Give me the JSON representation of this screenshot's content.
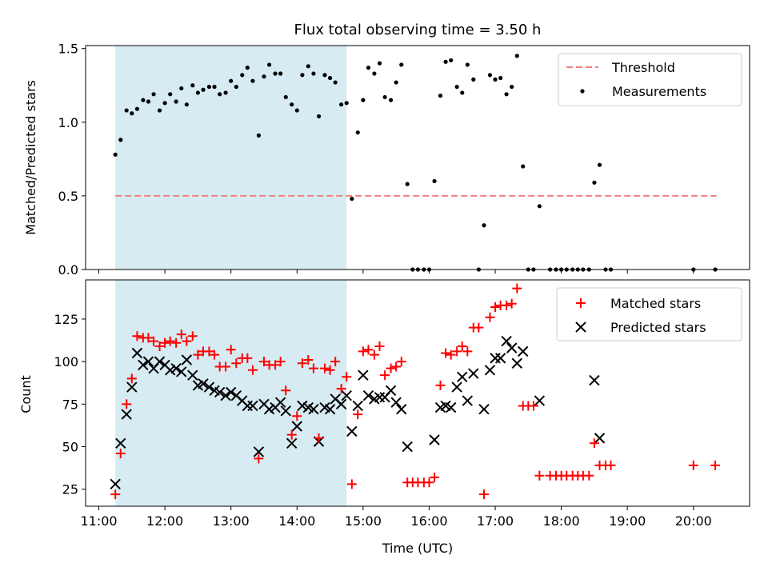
{
  "colors": {
    "threshold": "#f08080",
    "matched": "#ff0000",
    "predicted": "#000000",
    "shade": "#add8e6",
    "measure": "#000000"
  },
  "chart_data": [
    {
      "type": "scatter",
      "title": "Flux total observing time = 3.50 h",
      "ylabel": "Matched/Predicted stars",
      "xlabel": "",
      "xlim": [
        10.8,
        20.85
      ],
      "ylim": [
        0,
        1.52
      ],
      "yticks": [
        0,
        0.5,
        1.0,
        1.5
      ],
      "ytick_labels": [
        "0.0",
        "0.5",
        "1.0",
        "1.5"
      ],
      "shaded_span": [
        11.25,
        14.75
      ],
      "legend": {
        "position": "top-right",
        "entries": [
          "Threshold",
          "Measurements"
        ]
      },
      "threshold": {
        "name": "Threshold",
        "value": 0.5,
        "x_range": [
          11.25,
          20.35
        ]
      },
      "series": [
        {
          "name": "Measurements",
          "points": [
            [
              11.25,
              0.78
            ],
            [
              11.33,
              0.88
            ],
            [
              11.42,
              1.08
            ],
            [
              11.5,
              1.06
            ],
            [
              11.58,
              1.09
            ],
            [
              11.67,
              1.15
            ],
            [
              11.75,
              1.14
            ],
            [
              11.83,
              1.19
            ],
            [
              11.92,
              1.08
            ],
            [
              12.0,
              1.13
            ],
            [
              12.08,
              1.19
            ],
            [
              12.17,
              1.14
            ],
            [
              12.25,
              1.23
            ],
            [
              12.33,
              1.12
            ],
            [
              12.42,
              1.25
            ],
            [
              12.5,
              1.2
            ],
            [
              12.58,
              1.22
            ],
            [
              12.67,
              1.24
            ],
            [
              12.75,
              1.24
            ],
            [
              12.83,
              1.19
            ],
            [
              12.92,
              1.2
            ],
            [
              13.0,
              1.28
            ],
            [
              13.08,
              1.24
            ],
            [
              13.17,
              1.32
            ],
            [
              13.25,
              1.37
            ],
            [
              13.33,
              1.28
            ],
            [
              13.42,
              0.91
            ],
            [
              13.5,
              1.31
            ],
            [
              13.58,
              1.39
            ],
            [
              13.67,
              1.33
            ],
            [
              13.75,
              1.33
            ],
            [
              13.83,
              1.17
            ],
            [
              13.92,
              1.12
            ],
            [
              14.0,
              1.08
            ],
            [
              14.08,
              1.32
            ],
            [
              14.17,
              1.38
            ],
            [
              14.25,
              1.33
            ],
            [
              14.33,
              1.04
            ],
            [
              14.42,
              1.32
            ],
            [
              14.5,
              1.3
            ],
            [
              14.58,
              1.27
            ],
            [
              14.67,
              1.12
            ],
            [
              14.75,
              1.13
            ],
            [
              14.83,
              0.48
            ],
            [
              14.92,
              0.93
            ],
            [
              15.0,
              1.15
            ],
            [
              15.08,
              1.37
            ],
            [
              15.17,
              1.33
            ],
            [
              15.25,
              1.4
            ],
            [
              15.33,
              1.17
            ],
            [
              15.42,
              1.15
            ],
            [
              15.5,
              1.27
            ],
            [
              15.58,
              1.39
            ],
            [
              15.67,
              0.58
            ],
            [
              15.75,
              0
            ],
            [
              15.83,
              0
            ],
            [
              15.92,
              0
            ],
            [
              16.0,
              0
            ],
            [
              16.08,
              0.6
            ],
            [
              16.17,
              1.18
            ],
            [
              16.25,
              1.41
            ],
            [
              16.33,
              1.42
            ],
            [
              16.42,
              1.24
            ],
            [
              16.5,
              1.2
            ],
            [
              16.58,
              1.39
            ],
            [
              16.67,
              1.29
            ],
            [
              16.75,
              0
            ],
            [
              16.83,
              0.3
            ],
            [
              16.92,
              1.32
            ],
            [
              17.0,
              1.29
            ],
            [
              17.08,
              1.3
            ],
            [
              17.17,
              1.19
            ],
            [
              17.25,
              1.24
            ],
            [
              17.33,
              1.45
            ],
            [
              17.42,
              0.7
            ],
            [
              17.5,
              0
            ],
            [
              17.58,
              0
            ],
            [
              17.67,
              0.43
            ],
            [
              17.83,
              0
            ],
            [
              17.92,
              0
            ],
            [
              18.0,
              0
            ],
            [
              18.08,
              0
            ],
            [
              18.17,
              0
            ],
            [
              18.25,
              0
            ],
            [
              18.33,
              0
            ],
            [
              18.42,
              0
            ],
            [
              18.5,
              0.59
            ],
            [
              18.58,
              0.71
            ],
            [
              18.67,
              0
            ],
            [
              18.75,
              0
            ],
            [
              20.0,
              0
            ],
            [
              20.33,
              0
            ]
          ]
        }
      ]
    },
    {
      "type": "scatter",
      "title": "",
      "ylabel": "Count",
      "xlabel": "Time (UTC)",
      "xlim": [
        10.8,
        20.85
      ],
      "ylim": [
        15,
        148
      ],
      "yticks": [
        25,
        50,
        75,
        100,
        125
      ],
      "ytick_labels": [
        "25",
        "50",
        "75",
        "100",
        "125"
      ],
      "xticks": [
        11,
        12,
        13,
        14,
        15,
        16,
        17,
        18,
        19,
        20
      ],
      "xtick_labels": [
        "11:00",
        "12:00",
        "13:00",
        "14:00",
        "15:00",
        "16:00",
        "17:00",
        "18:00",
        "19:00",
        "20:00"
      ],
      "shaded_span": [
        11.25,
        14.75
      ],
      "legend": {
        "position": "top-right",
        "entries": [
          "Matched stars",
          "Predicted stars"
        ]
      },
      "series": [
        {
          "name": "Matched stars",
          "marker": "+",
          "points": [
            [
              11.25,
              22
            ],
            [
              11.33,
              46
            ],
            [
              11.42,
              75
            ],
            [
              11.5,
              90
            ],
            [
              11.58,
              115
            ],
            [
              11.67,
              114
            ],
            [
              11.75,
              114
            ],
            [
              11.83,
              112
            ],
            [
              11.92,
              109
            ],
            [
              12.0,
              111
            ],
            [
              12.08,
              112
            ],
            [
              12.17,
              111
            ],
            [
              12.25,
              116
            ],
            [
              12.33,
              112
            ],
            [
              12.42,
              115
            ],
            [
              12.5,
              104
            ],
            [
              12.58,
              106
            ],
            [
              12.67,
              106
            ],
            [
              12.75,
              104
            ],
            [
              12.83,
              97
            ],
            [
              12.92,
              97
            ],
            [
              13.0,
              107
            ],
            [
              13.08,
              99
            ],
            [
              13.17,
              102
            ],
            [
              13.25,
              102
            ],
            [
              13.33,
              95
            ],
            [
              13.42,
              43
            ],
            [
              13.5,
              100
            ],
            [
              13.58,
              98
            ],
            [
              13.67,
              98
            ],
            [
              13.75,
              100
            ],
            [
              13.83,
              83
            ],
            [
              13.92,
              57
            ],
            [
              14.0,
              68
            ],
            [
              14.08,
              99
            ],
            [
              14.17,
              101
            ],
            [
              14.25,
              96
            ],
            [
              14.33,
              55
            ],
            [
              14.42,
              96
            ],
            [
              14.5,
              95
            ],
            [
              14.58,
              100
            ],
            [
              14.67,
              84
            ],
            [
              14.75,
              91
            ],
            [
              14.83,
              28
            ],
            [
              14.92,
              69
            ],
            [
              15.0,
              106
            ],
            [
              15.08,
              107
            ],
            [
              15.17,
              104
            ],
            [
              15.25,
              109
            ],
            [
              15.33,
              92
            ],
            [
              15.42,
              96
            ],
            [
              15.5,
              97
            ],
            [
              15.58,
              100
            ],
            [
              15.67,
              29
            ],
            [
              15.75,
              29
            ],
            [
              15.83,
              29
            ],
            [
              15.92,
              29
            ],
            [
              16.0,
              29
            ],
            [
              16.08,
              32
            ],
            [
              16.17,
              86
            ],
            [
              16.25,
              105
            ],
            [
              16.33,
              104
            ],
            [
              16.42,
              106
            ],
            [
              16.5,
              109
            ],
            [
              16.58,
              106
            ],
            [
              16.67,
              120
            ],
            [
              16.75,
              120
            ],
            [
              16.83,
              22
            ],
            [
              16.92,
              126
            ],
            [
              17.0,
              132
            ],
            [
              17.08,
              133
            ],
            [
              17.17,
              133
            ],
            [
              17.25,
              134
            ],
            [
              17.33,
              143
            ],
            [
              17.42,
              74
            ],
            [
              17.5,
              74
            ],
            [
              17.58,
              74
            ],
            [
              17.67,
              33
            ],
            [
              17.83,
              33
            ],
            [
              17.92,
              33
            ],
            [
              18.0,
              33
            ],
            [
              18.08,
              33
            ],
            [
              18.17,
              33
            ],
            [
              18.25,
              33
            ],
            [
              18.33,
              33
            ],
            [
              18.42,
              33
            ],
            [
              18.5,
              52
            ],
            [
              18.58,
              39
            ],
            [
              18.67,
              39
            ],
            [
              18.75,
              39
            ],
            [
              20.0,
              39
            ],
            [
              20.33,
              39
            ]
          ]
        },
        {
          "name": "Predicted stars",
          "marker": "x",
          "points": [
            [
              11.25,
              28
            ],
            [
              11.33,
              52
            ],
            [
              11.42,
              69
            ],
            [
              11.5,
              85
            ],
            [
              11.58,
              105
            ],
            [
              11.67,
              98
            ],
            [
              11.75,
              100
            ],
            [
              11.83,
              96
            ],
            [
              11.92,
              100
            ],
            [
              12.0,
              98
            ],
            [
              12.08,
              95
            ],
            [
              12.17,
              96
            ],
            [
              12.25,
              94
            ],
            [
              12.33,
              101
            ],
            [
              12.42,
              92
            ],
            [
              12.5,
              86
            ],
            [
              12.58,
              87
            ],
            [
              12.67,
              85
            ],
            [
              12.75,
              83
            ],
            [
              12.83,
              82
            ],
            [
              12.92,
              80
            ],
            [
              13.0,
              82
            ],
            [
              13.08,
              80
            ],
            [
              13.17,
              77
            ],
            [
              13.25,
              74
            ],
            [
              13.33,
              74
            ],
            [
              13.42,
              47
            ],
            [
              13.5,
              75
            ],
            [
              13.58,
              72
            ],
            [
              13.67,
              73
            ],
            [
              13.75,
              76
            ],
            [
              13.83,
              71
            ],
            [
              13.92,
              52
            ],
            [
              14.0,
              62
            ],
            [
              14.08,
              74
            ],
            [
              14.17,
              73
            ],
            [
              14.25,
              72
            ],
            [
              14.33,
              53
            ],
            [
              14.42,
              73
            ],
            [
              14.5,
              72
            ],
            [
              14.58,
              78
            ],
            [
              14.67,
              75
            ],
            [
              14.75,
              80
            ],
            [
              14.83,
              59
            ],
            [
              14.92,
              74
            ],
            [
              15.0,
              92
            ],
            [
              15.08,
              80
            ],
            [
              15.17,
              78
            ],
            [
              15.25,
              79
            ],
            [
              15.33,
              79
            ],
            [
              15.42,
              83
            ],
            [
              15.5,
              76
            ],
            [
              15.58,
              72
            ],
            [
              15.67,
              50
            ],
            [
              16.08,
              54
            ],
            [
              16.17,
              73
            ],
            [
              16.25,
              74
            ],
            [
              16.33,
              73
            ],
            [
              16.42,
              85
            ],
            [
              16.5,
              91
            ],
            [
              16.58,
              77
            ],
            [
              16.67,
              93
            ],
            [
              16.83,
              72
            ],
            [
              16.92,
              95
            ],
            [
              17.0,
              102
            ],
            [
              17.08,
              102
            ],
            [
              17.17,
              112
            ],
            [
              17.25,
              108
            ],
            [
              17.33,
              99
            ],
            [
              17.42,
              106
            ],
            [
              17.67,
              77
            ],
            [
              18.5,
              89
            ],
            [
              18.58,
              55
            ]
          ]
        }
      ]
    }
  ]
}
